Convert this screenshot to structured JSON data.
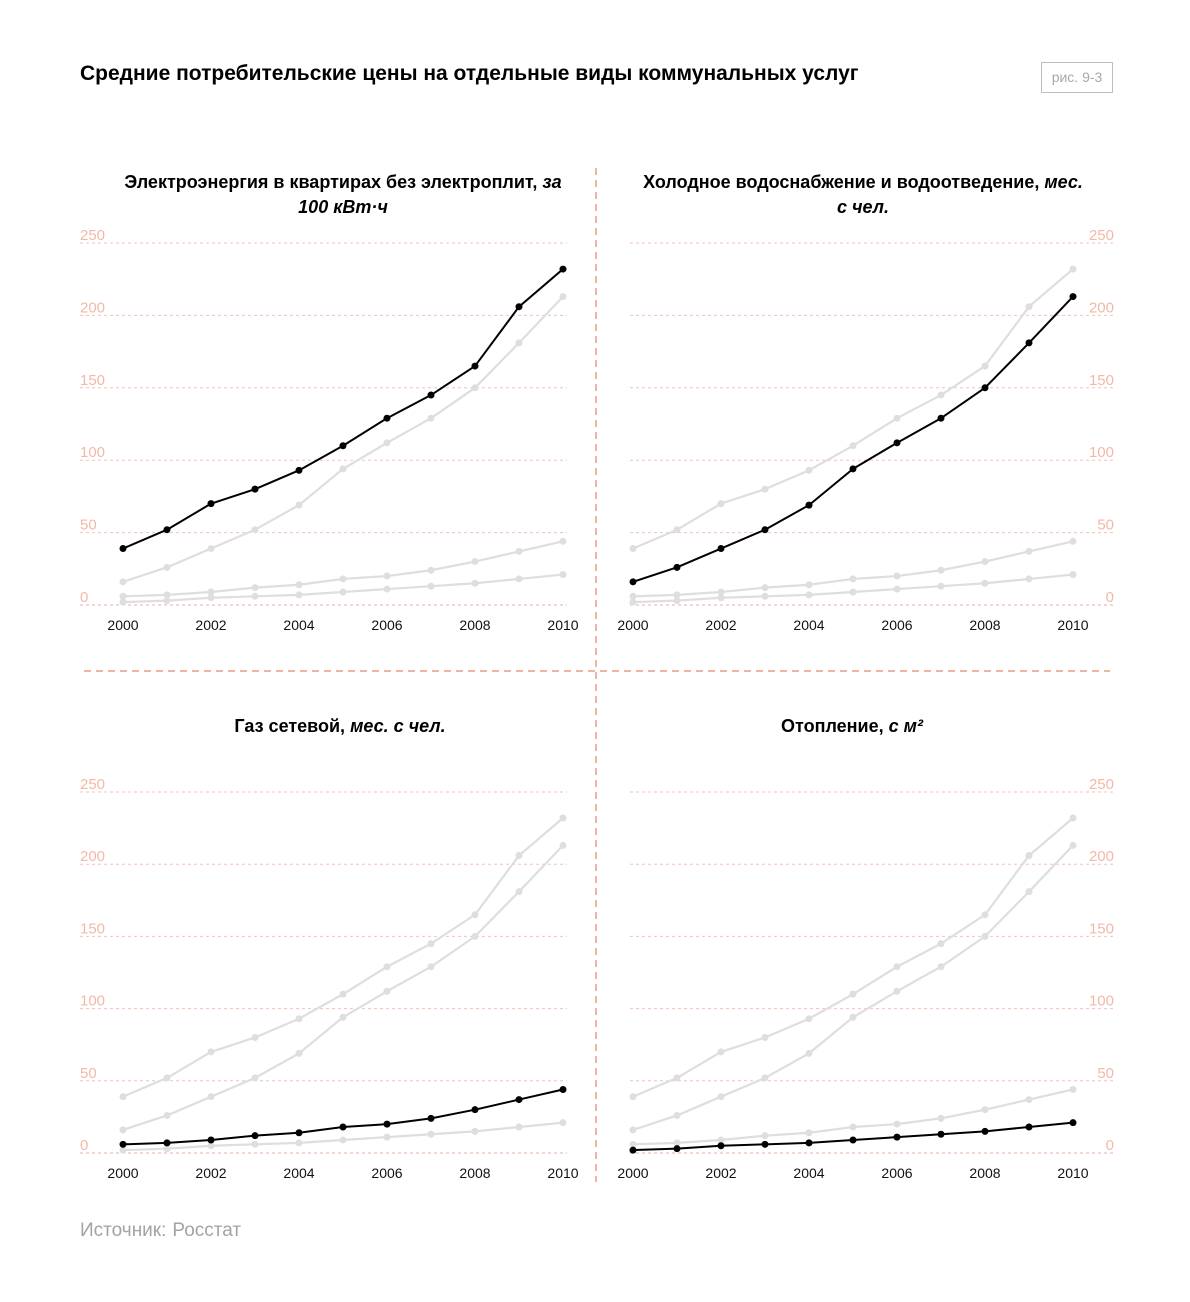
{
  "title": "Средние потребительские цены на отдельные виды коммунальных услуг",
  "figure_label": "рис. 9-3",
  "source": {
    "prefix": "Источник:",
    "name": "Росстат"
  },
  "colors": {
    "highlight": "#000000",
    "muted": "#dedede",
    "grid": "#f3c2b5",
    "divider": "#ec9c84",
    "tick_y": "#f3b8a8",
    "badge_border": "#bdbdbd"
  },
  "panels": [
    {
      "title_main": "Электроэнергия в квартирах без электроплит,",
      "title_unit": "за 100 кВт·ч",
      "highlight_series": 0
    },
    {
      "title_main": "Холодное водоснабжение и водоотведение,",
      "title_unit": "мес. с чел.",
      "highlight_series": 1
    },
    {
      "title_main": "Газ сетевой,",
      "title_unit": "мес. с чел.",
      "highlight_series": 2
    },
    {
      "title_main": "Отопление,",
      "title_unit": "с м²",
      "highlight_series": 3
    }
  ],
  "chart_data": {
    "type": "line",
    "x": [
      2000,
      2001,
      2002,
      2003,
      2004,
      2005,
      2006,
      2007,
      2008,
      2009,
      2010
    ],
    "x_tick_labels": [
      "2000",
      "2002",
      "2004",
      "2006",
      "2008",
      "2010"
    ],
    "y_tick_labels": [
      "0",
      "50",
      "100",
      "150",
      "200",
      "250"
    ],
    "ylim": [
      0,
      250
    ],
    "grid": true,
    "series": [
      {
        "values": [
          39,
          52,
          70,
          80,
          93,
          110,
          129,
          145,
          165,
          206,
          232
        ]
      },
      {
        "values": [
          16,
          26,
          39,
          52,
          69,
          94,
          112,
          129,
          150,
          181,
          213
        ]
      },
      {
        "values": [
          6,
          7,
          9,
          12,
          14,
          18,
          20,
          24,
          30,
          37,
          44
        ]
      },
      {
        "values": [
          2,
          3,
          5,
          6,
          7,
          9,
          11,
          13,
          15,
          18,
          21
        ]
      }
    ]
  }
}
